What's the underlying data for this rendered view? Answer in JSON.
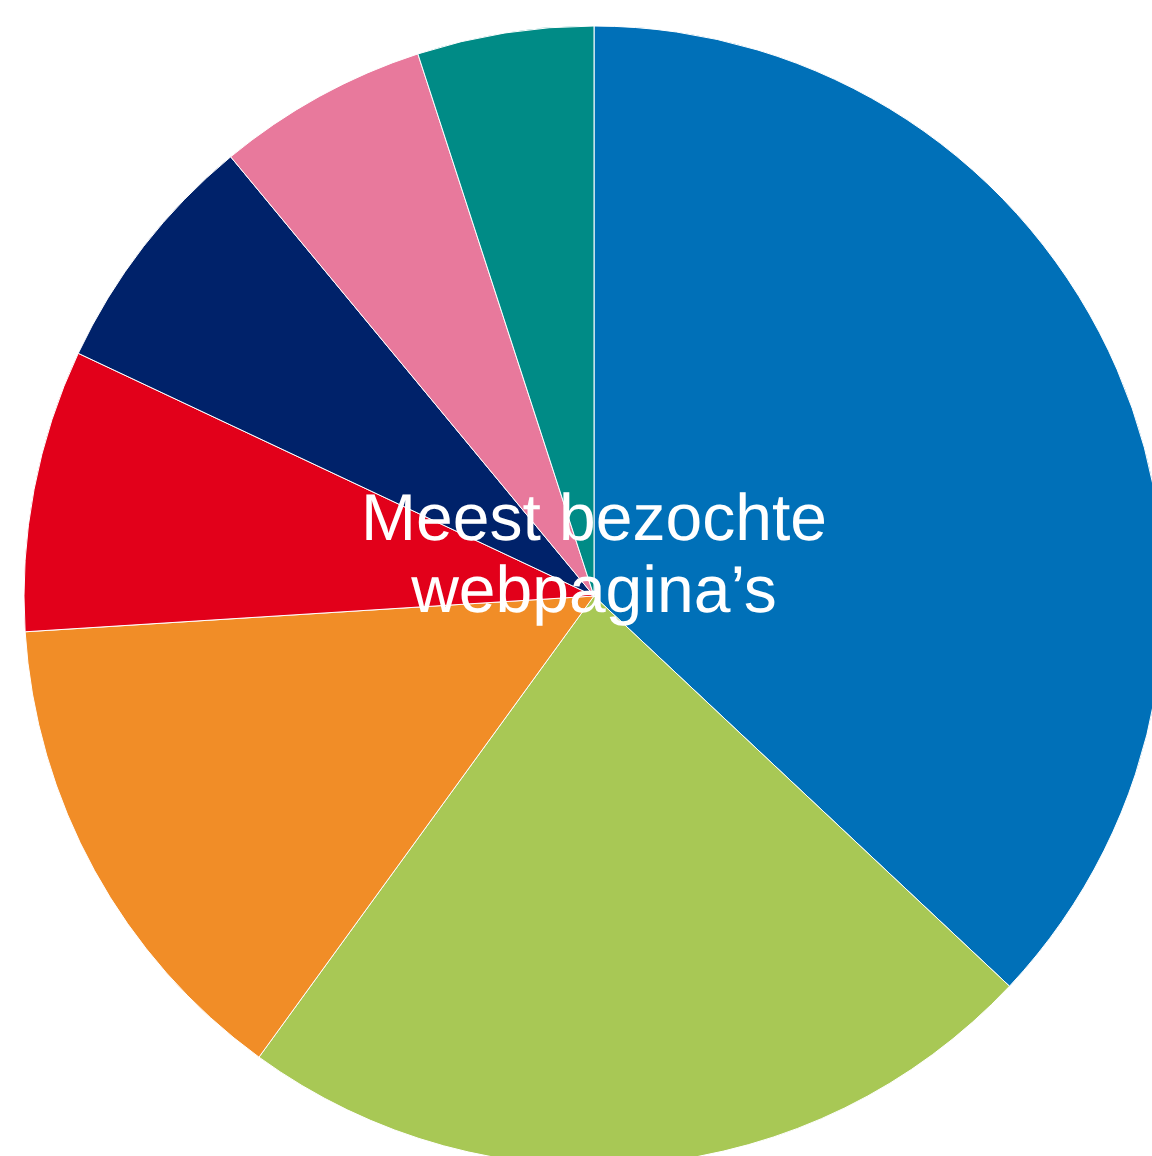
{
  "chart_data": {
    "type": "pie",
    "title": "Meest bezochte webpagina’s",
    "categories": [
      null,
      null,
      null,
      null,
      null,
      null,
      null
    ],
    "values": [
      37,
      23,
      14,
      8,
      7,
      6,
      5
    ],
    "colors": [
      "#0070b8",
      "#a8c855",
      "#f18d27",
      "#e2001a",
      "#00226a",
      "#e8799c",
      "#008b86"
    ]
  }
}
